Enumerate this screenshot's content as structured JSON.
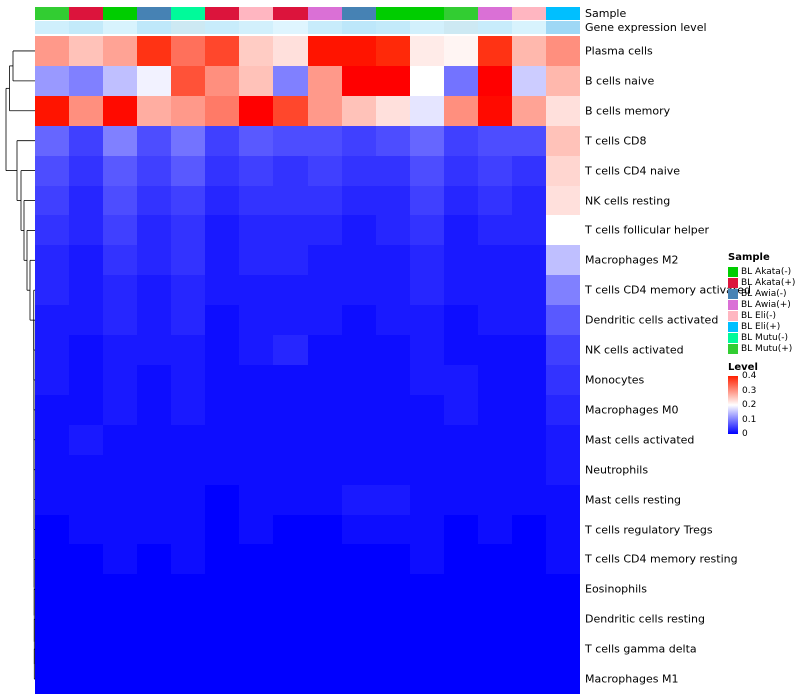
{
  "chart_data": {
    "type": "heatmap",
    "title": "",
    "annotation_labels": {
      "sample": "Sample",
      "gene_expression": "Gene expression level"
    },
    "rows": [
      "Plasma cells",
      "B cells naive",
      "B cells memory",
      "T cells CD8",
      "T cells CD4 naive",
      "NK cells resting",
      "T cells follicular helper",
      "Macrophages M2",
      "T cells CD4 memory activated",
      "Dendritic cells activated",
      "NK cells activated",
      "Monocytes",
      "Macrophages M0",
      "Mast cells activated",
      "Neutrophils",
      "Mast cells resting",
      "T cells regulatory  Tregs",
      "T cells CD4 memory resting",
      "Eosinophils",
      "Dendritic cells resting",
      "T cells gamma delta",
      "Macrophages M1"
    ],
    "n_cols": 16,
    "column_samples": [
      "BL Mutu(+)",
      "BL Akata(+)",
      "BL Akata(-)",
      "BL Awia(-)",
      "BL Mutu(-)",
      "BL Akata(+)",
      "BL Eli(-)",
      "BL Akata(+)",
      "BL Awia(+)",
      "BL Awia(-)",
      "BL Akata(-)",
      "BL Akata(-)",
      "BL Mutu(+)",
      "BL Awia(+)",
      "BL Eli(-)",
      "BL Eli(+)"
    ],
    "gene_expression_colors": [
      "#cfeffc",
      "#c3eafa",
      "#d8f3fd",
      "#bfe8fa",
      "#cde9f3",
      "#c8ecfb",
      "#d2f0fc",
      "#dff5fe",
      "#c8ecfb",
      "#bde7fa",
      "#c3eafa",
      "#d2f0fc",
      "#cde9f3",
      "#c8ecfb",
      "#d8f3fd",
      "#9fd8f5"
    ],
    "color_scale": {
      "min": 0,
      "mid": 0.2,
      "max": 0.45,
      "min_color": "#0000ff",
      "mid_color": "#ffffff",
      "max_color": "#ff2000"
    },
    "values": [
      [
        0.3,
        0.26,
        0.29,
        0.4,
        0.34,
        0.38,
        0.25,
        0.23,
        0.43,
        0.43,
        0.41,
        0.22,
        0.21,
        0.4,
        0.27,
        0.31
      ],
      [
        0.12,
        0.1,
        0.15,
        0.19,
        0.37,
        0.31,
        0.26,
        0.1,
        0.3,
        0.48,
        0.46,
        0.2,
        0.09,
        0.48,
        0.16,
        0.27
      ],
      [
        0.43,
        0.31,
        0.44,
        0.28,
        0.3,
        0.33,
        0.45,
        0.38,
        0.3,
        0.26,
        0.23,
        0.18,
        0.31,
        0.44,
        0.29,
        0.23
      ],
      [
        0.08,
        0.05,
        0.1,
        0.06,
        0.09,
        0.05,
        0.07,
        0.06,
        0.06,
        0.05,
        0.06,
        0.08,
        0.05,
        0.06,
        0.06,
        0.26
      ],
      [
        0.06,
        0.04,
        0.07,
        0.05,
        0.07,
        0.04,
        0.05,
        0.04,
        0.05,
        0.04,
        0.04,
        0.06,
        0.04,
        0.05,
        0.04,
        0.24
      ],
      [
        0.05,
        0.03,
        0.06,
        0.04,
        0.05,
        0.03,
        0.04,
        0.04,
        0.04,
        0.03,
        0.03,
        0.05,
        0.03,
        0.04,
        0.03,
        0.23
      ],
      [
        0.04,
        0.03,
        0.05,
        0.03,
        0.04,
        0.02,
        0.03,
        0.03,
        0.03,
        0.02,
        0.03,
        0.04,
        0.02,
        0.03,
        0.03,
        0.2
      ],
      [
        0.03,
        0.02,
        0.04,
        0.03,
        0.04,
        0.02,
        0.03,
        0.03,
        0.02,
        0.02,
        0.02,
        0.03,
        0.02,
        0.02,
        0.02,
        0.15
      ],
      [
        0.03,
        0.02,
        0.03,
        0.02,
        0.03,
        0.02,
        0.02,
        0.02,
        0.02,
        0.02,
        0.02,
        0.03,
        0.02,
        0.02,
        0.02,
        0.1
      ],
      [
        0.02,
        0.02,
        0.03,
        0.02,
        0.03,
        0.01,
        0.02,
        0.02,
        0.02,
        0.01,
        0.02,
        0.02,
        0.01,
        0.02,
        0.02,
        0.07
      ],
      [
        0.02,
        0.01,
        0.02,
        0.02,
        0.02,
        0.01,
        0.02,
        0.03,
        0.01,
        0.01,
        0.01,
        0.02,
        0.01,
        0.01,
        0.01,
        0.05
      ],
      [
        0.02,
        0.01,
        0.02,
        0.01,
        0.02,
        0.01,
        0.01,
        0.01,
        0.01,
        0.01,
        0.01,
        0.02,
        0.02,
        0.01,
        0.01,
        0.04
      ],
      [
        0.01,
        0.01,
        0.02,
        0.01,
        0.02,
        0.01,
        0.01,
        0.01,
        0.01,
        0.01,
        0.01,
        0.01,
        0.02,
        0.01,
        0.01,
        0.03
      ],
      [
        0.01,
        0.02,
        0.01,
        0.01,
        0.01,
        0.01,
        0.01,
        0.01,
        0.01,
        0.01,
        0.01,
        0.01,
        0.01,
        0.01,
        0.01,
        0.02
      ],
      [
        0.01,
        0.01,
        0.01,
        0.01,
        0.01,
        0.01,
        0.01,
        0.01,
        0.01,
        0.01,
        0.01,
        0.01,
        0.01,
        0.01,
        0.01,
        0.02
      ],
      [
        0.01,
        0.01,
        0.01,
        0.01,
        0.01,
        0.0,
        0.01,
        0.01,
        0.01,
        0.02,
        0.02,
        0.01,
        0.01,
        0.01,
        0.01,
        0.01
      ],
      [
        0.0,
        0.01,
        0.01,
        0.01,
        0.01,
        0.0,
        0.01,
        0.0,
        0.0,
        0.01,
        0.01,
        0.01,
        0.0,
        0.01,
        0.0,
        0.01
      ],
      [
        0.0,
        0.0,
        0.01,
        0.0,
        0.01,
        0.0,
        0.0,
        0.0,
        0.0,
        0.0,
        0.0,
        0.01,
        0.0,
        0.0,
        0.0,
        0.01
      ],
      [
        0.0,
        0.0,
        0.0,
        0.0,
        0.0,
        0.0,
        0.0,
        0.0,
        0.0,
        0.0,
        0.0,
        0.0,
        0.0,
        0.0,
        0.0,
        0.0
      ],
      [
        0.0,
        0.0,
        0.0,
        0.0,
        0.0,
        0.0,
        0.0,
        0.0,
        0.0,
        0.0,
        0.0,
        0.0,
        0.0,
        0.0,
        0.0,
        0.0
      ],
      [
        0.0,
        0.0,
        0.0,
        0.0,
        0.0,
        0.0,
        0.0,
        0.0,
        0.0,
        0.0,
        0.0,
        0.0,
        0.0,
        0.0,
        0.0,
        0.0
      ],
      [
        0.0,
        0.0,
        0.0,
        0.0,
        0.0,
        0.0,
        0.0,
        0.0,
        0.0,
        0.0,
        0.0,
        0.0,
        0.0,
        0.0,
        0.0,
        0.0
      ]
    ]
  },
  "legends": {
    "sample": {
      "title": "Sample",
      "entries": [
        {
          "label": "BL Akata(-)",
          "color": "#00CD00"
        },
        {
          "label": "BL Akata(+)",
          "color": "#DC143C"
        },
        {
          "label": "BL Awia(-)",
          "color": "#4682B4"
        },
        {
          "label": "BL Awia(+)",
          "color": "#DA70D6"
        },
        {
          "label": "BL Eli(-)",
          "color": "#FFB6C1"
        },
        {
          "label": "BL Eli(+)",
          "color": "#00BFFF"
        },
        {
          "label": "BL Mutu(-)",
          "color": "#00FA9A"
        },
        {
          "label": "BL Mutu(+)",
          "color": "#32CD32"
        }
      ]
    },
    "level": {
      "title": "Level",
      "ticks": [
        "0.4",
        "0.3",
        "0.2",
        "0.1",
        "0"
      ]
    }
  }
}
